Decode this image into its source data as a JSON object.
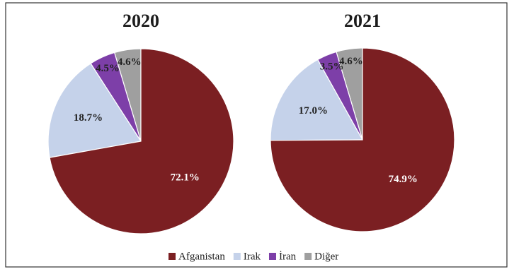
{
  "colors": {
    "Afganistan": "#7b1f22",
    "Irak": "#c5d2ea",
    "İran": "#7d3fa8",
    "Diğer": "#9f9f9f",
    "border": "#333333",
    "pie_stroke": "#ffffff",
    "label_light": "#ffffff",
    "label_dark": "#222222"
  },
  "chart_data": [
    {
      "type": "pie",
      "title": "2020",
      "categories": [
        "Afganistan",
        "Irak",
        "İran",
        "Diğer"
      ],
      "values": [
        72.1,
        18.7,
        4.5,
        4.6
      ],
      "labels": [
        "72.1%",
        "18.7%",
        "4.5%",
        "4.6%"
      ],
      "start": "12 o'clock, slices ordered counter-clockwise from Diğer to Afganistan",
      "legend": "bottom"
    },
    {
      "type": "pie",
      "title": "2021",
      "categories": [
        "Afganistan",
        "Irak",
        "İran",
        "Diğer"
      ],
      "values": [
        74.9,
        17.0,
        3.5,
        4.6
      ],
      "labels": [
        "74.9%",
        "17.0%",
        "3.5%",
        "4.6%"
      ],
      "start": "12 o'clock, slices ordered counter-clockwise from Diğer to Afganistan",
      "legend": "bottom"
    }
  ],
  "legend": [
    "Afganistan",
    "Irak",
    "İran",
    "Diğer"
  ]
}
